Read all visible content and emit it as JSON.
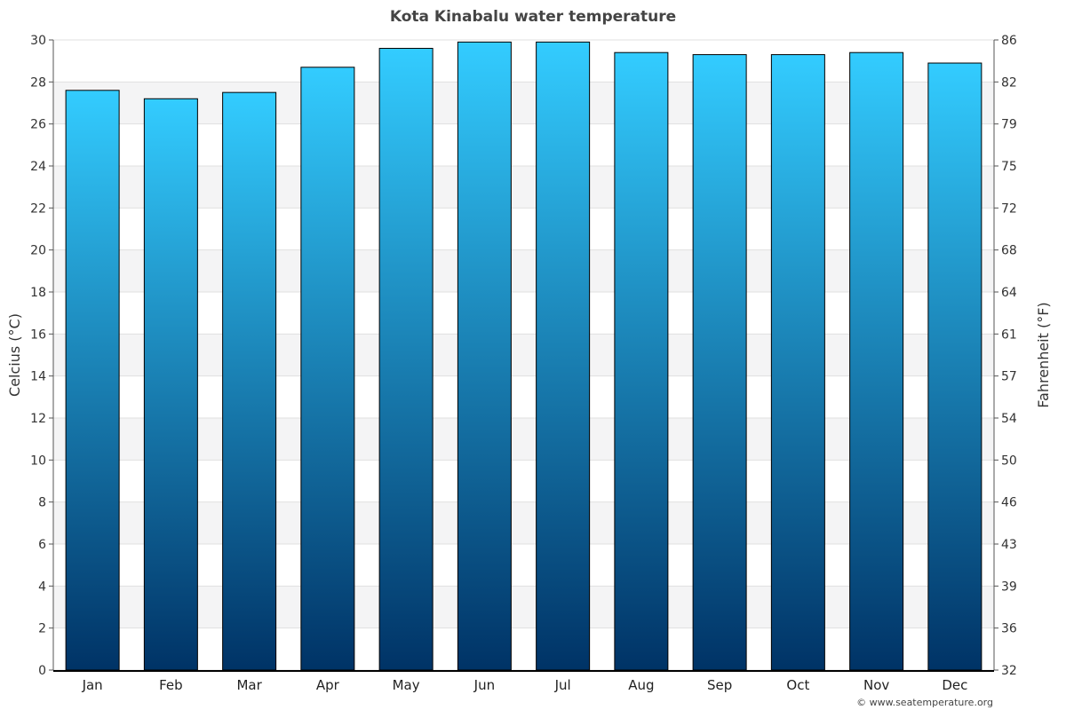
{
  "chart_data": {
    "type": "bar",
    "title": "Kota Kinabalu water temperature",
    "categories": [
      "Jan",
      "Feb",
      "Mar",
      "Apr",
      "May",
      "Jun",
      "Jul",
      "Aug",
      "Sep",
      "Oct",
      "Nov",
      "Dec"
    ],
    "series": [
      {
        "values": [
          27.6,
          27.2,
          27.5,
          28.7,
          29.6,
          29.9,
          29.9,
          29.4,
          29.3,
          29.3,
          29.4,
          28.9
        ]
      }
    ],
    "ylabel": "Celcius (°C)",
    "y2label": "Fahrenheit (°F)",
    "ylim": [
      0,
      30
    ],
    "yticks": [
      0,
      2,
      4,
      6,
      8,
      10,
      12,
      14,
      16,
      18,
      20,
      22,
      24,
      26,
      28,
      30
    ],
    "y2ticks": [
      "32",
      "36",
      "39",
      "43",
      "46",
      "50",
      "54",
      "57",
      "61",
      "64",
      "68",
      "72",
      "75",
      "79",
      "82",
      "86"
    ],
    "grid": true,
    "legend": "none",
    "colors": {
      "bar_top": "#33ccff",
      "bar_bottom": "#003366",
      "band": "#f4f4f5",
      "gridline": "#e0e0e0"
    }
  },
  "credit": "© www.seatemperature.org"
}
